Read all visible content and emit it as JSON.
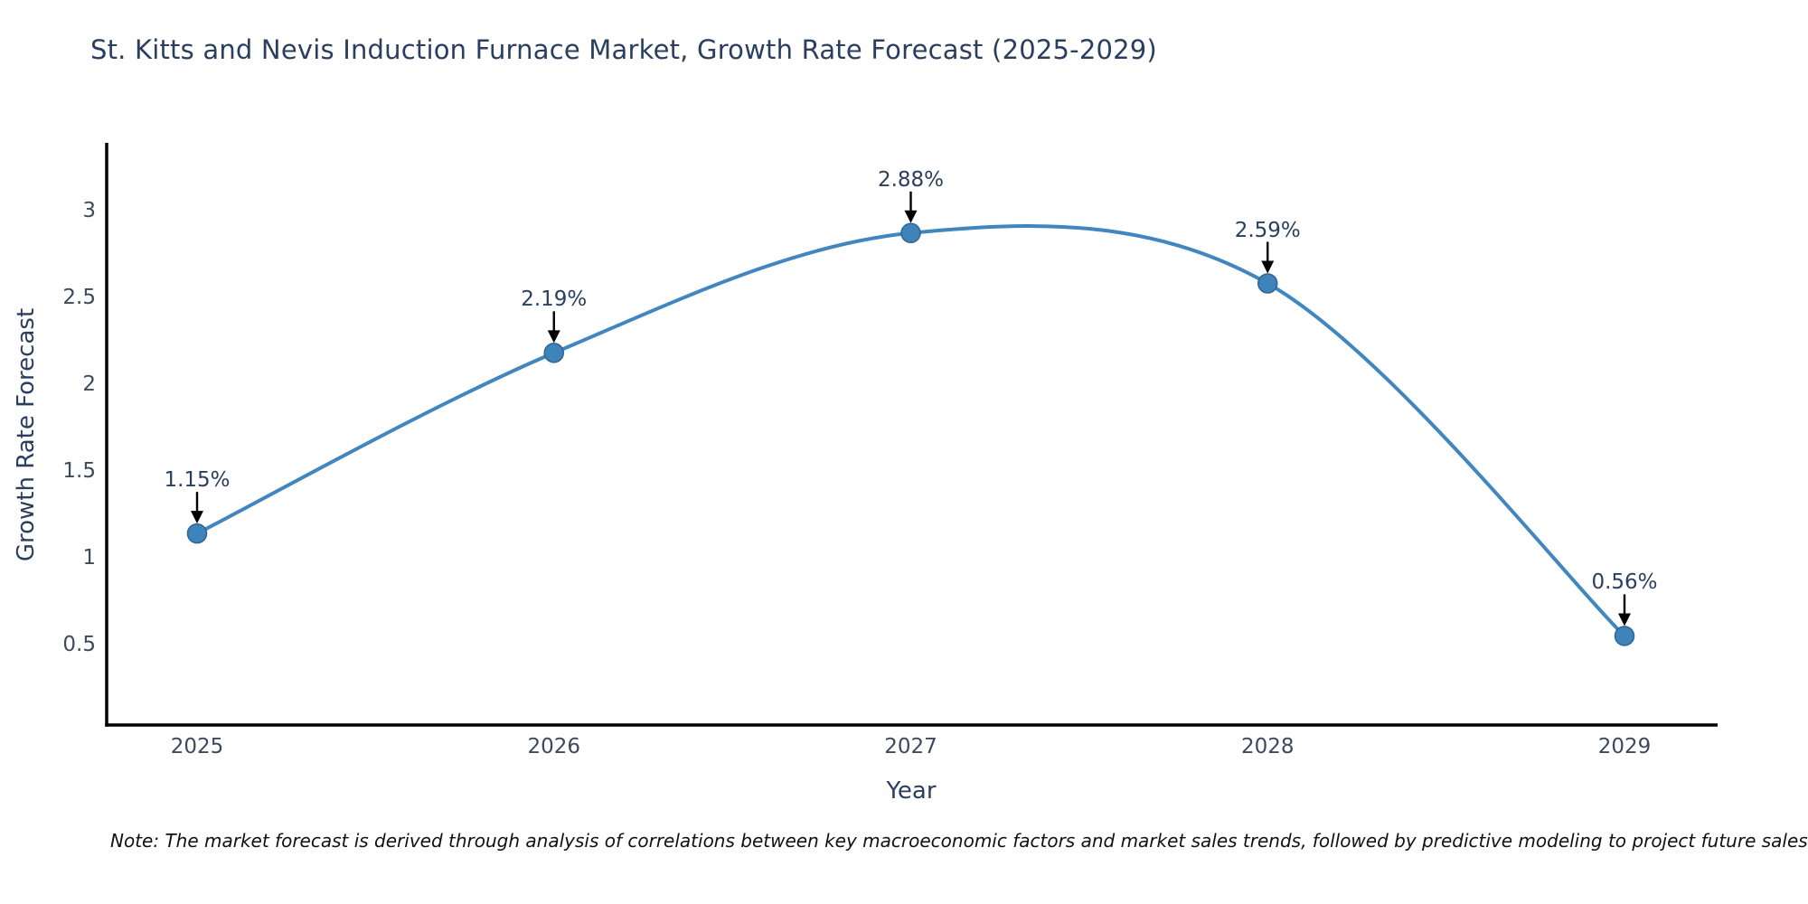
{
  "chart_data": {
    "type": "line",
    "title": "St. Kitts and Nevis Induction Furnace Market, Growth Rate Forecast (2025-2029)",
    "xlabel": "Year",
    "ylabel": "Growth Rate Forecast",
    "x": [
      2025,
      2026,
      2027,
      2028,
      2029
    ],
    "values": [
      1.15,
      2.19,
      2.88,
      2.59,
      0.56
    ],
    "point_labels": [
      "1.15%",
      "2.19%",
      "2.88%",
      "2.59%",
      "0.56%"
    ],
    "x_tick_labels": [
      "2025",
      "2026",
      "2027",
      "2028",
      "2029"
    ],
    "y_tick_labels": [
      "0.5",
      "1",
      "1.5",
      "2",
      "2.5",
      "3"
    ],
    "y_tick_values": [
      0.5,
      1,
      1.5,
      2,
      2.5,
      3
    ],
    "ylim": [
      0.05,
      3.4
    ],
    "grid": false,
    "legend_position": "none",
    "line_shape": "spline",
    "markers": true,
    "annotation_arrows": true,
    "colors": {
      "line": "#4186be",
      "marker": "#3f83bb",
      "marker_edge": "#2e6493",
      "arrow": "#000000",
      "axis": "#000000",
      "title_text": "#2a3f5f",
      "tick_text": "#3d4a5c"
    }
  },
  "note": {
    "text": "Note: The market forecast is derived through analysis of correlations between key macroeconomic factors and market sales trends, followed by predictive modeling to project future sales"
  }
}
